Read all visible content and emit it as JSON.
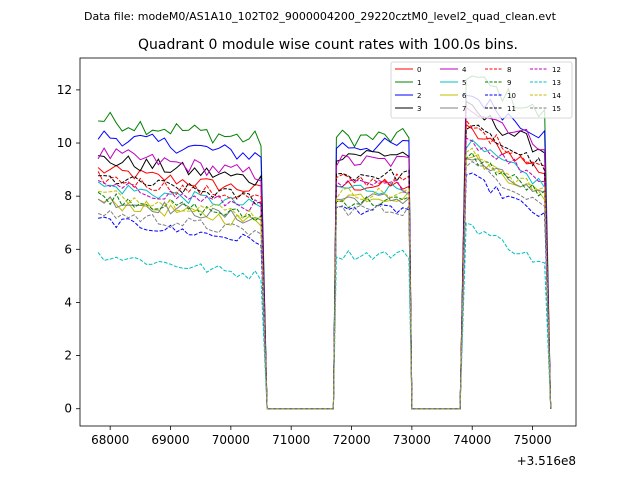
{
  "suptitle": "Data file: modeM0/AS1A10_102T02_9000004200_29220cztM0_level2_quad_clean.evt",
  "chart_data": {
    "type": "line",
    "title": "Quadrant 0 module wise count rates with 100.0s bins.",
    "xlabel": "",
    "ylabel": "",
    "x_offset_label": "+3.516e8",
    "x_offset": 351600000,
    "xlim": [
      67500,
      75720
    ],
    "ylim": [
      -0.65,
      13.2
    ],
    "xticks": [
      68000,
      69000,
      70000,
      71000,
      72000,
      73000,
      74000,
      75000
    ],
    "xtick_labels": [
      "68000",
      "69000",
      "70000",
      "71000",
      "72000",
      "73000",
      "74000",
      "75000"
    ],
    "yticks": [
      0,
      2,
      4,
      6,
      8,
      10,
      12
    ],
    "ytick_labels": [
      "0",
      "2",
      "4",
      "6",
      "8",
      "10",
      "12"
    ],
    "legend_position": "top-right",
    "legend_columns": 4,
    "segments": [
      {
        "start": 67800,
        "end": 70500
      },
      {
        "start": 71750,
        "end": 72900
      },
      {
        "start": 73900,
        "end": 75200
      }
    ],
    "gap_ends": [
      70600,
      71700,
      73000,
      73800,
      75300
    ],
    "bin_seconds": 100,
    "series": [
      {
        "name": "0",
        "color": "#ff0000",
        "dash": "solid",
        "segment_means": [
          8.6,
          8.4,
          9.5
        ],
        "noise": 0.25
      },
      {
        "name": "1",
        "color": "#008000",
        "dash": "solid",
        "segment_means": [
          10.5,
          10.2,
          11.6
        ],
        "noise": 0.35
      },
      {
        "name": "2",
        "color": "#0000ff",
        "dash": "solid",
        "segment_means": [
          9.9,
          9.9,
          10.9
        ],
        "noise": 0.3
      },
      {
        "name": "3",
        "color": "#000000",
        "dash": "solid",
        "segment_means": [
          9.0,
          9.6,
          10.3
        ],
        "noise": 0.3
      },
      {
        "name": "4",
        "color": "#bf00bf",
        "dash": "solid",
        "segment_means": [
          9.2,
          9.3,
          10.5
        ],
        "noise": 0.3
      },
      {
        "name": "5",
        "color": "#00bfbf",
        "dash": "solid",
        "segment_means": [
          8.0,
          8.3,
          9.0
        ],
        "noise": 0.25
      },
      {
        "name": "6",
        "color": "#bfbf00",
        "dash": "solid",
        "segment_means": [
          7.4,
          8.0,
          8.6
        ],
        "noise": 0.25
      },
      {
        "name": "7",
        "color": "#808080",
        "dash": "solid",
        "segment_means": [
          7.5,
          7.9,
          8.5
        ],
        "noise": 0.25
      },
      {
        "name": "8",
        "color": "#ff0000",
        "dash": "dashed",
        "segment_means": [
          8.3,
          8.6,
          9.7
        ],
        "noise": 0.25
      },
      {
        "name": "9",
        "color": "#008000",
        "dash": "dashed",
        "segment_means": [
          7.6,
          7.8,
          8.6
        ],
        "noise": 0.25
      },
      {
        "name": "10",
        "color": "#0000ff",
        "dash": "dashed",
        "segment_means": [
          6.7,
          7.5,
          7.8
        ],
        "noise": 0.2
      },
      {
        "name": "11",
        "color": "#000000",
        "dash": "dashed",
        "segment_means": [
          8.3,
          8.8,
          9.7
        ],
        "noise": 0.25
      },
      {
        "name": "12",
        "color": "#bf00bf",
        "dash": "dashed",
        "segment_means": [
          8.0,
          8.4,
          9.2
        ],
        "noise": 0.25
      },
      {
        "name": "13",
        "color": "#00bfbf",
        "dash": "dashed",
        "segment_means": [
          5.4,
          5.8,
          6.0
        ],
        "noise": 0.2
      },
      {
        "name": "14",
        "color": "#bfbf00",
        "dash": "dashed",
        "segment_means": [
          7.7,
          8.1,
          8.7
        ],
        "noise": 0.25
      },
      {
        "name": "15",
        "color": "#808080",
        "dash": "dashed",
        "segment_means": [
          7.0,
          7.5,
          8.3
        ],
        "noise": 0.25
      }
    ]
  }
}
